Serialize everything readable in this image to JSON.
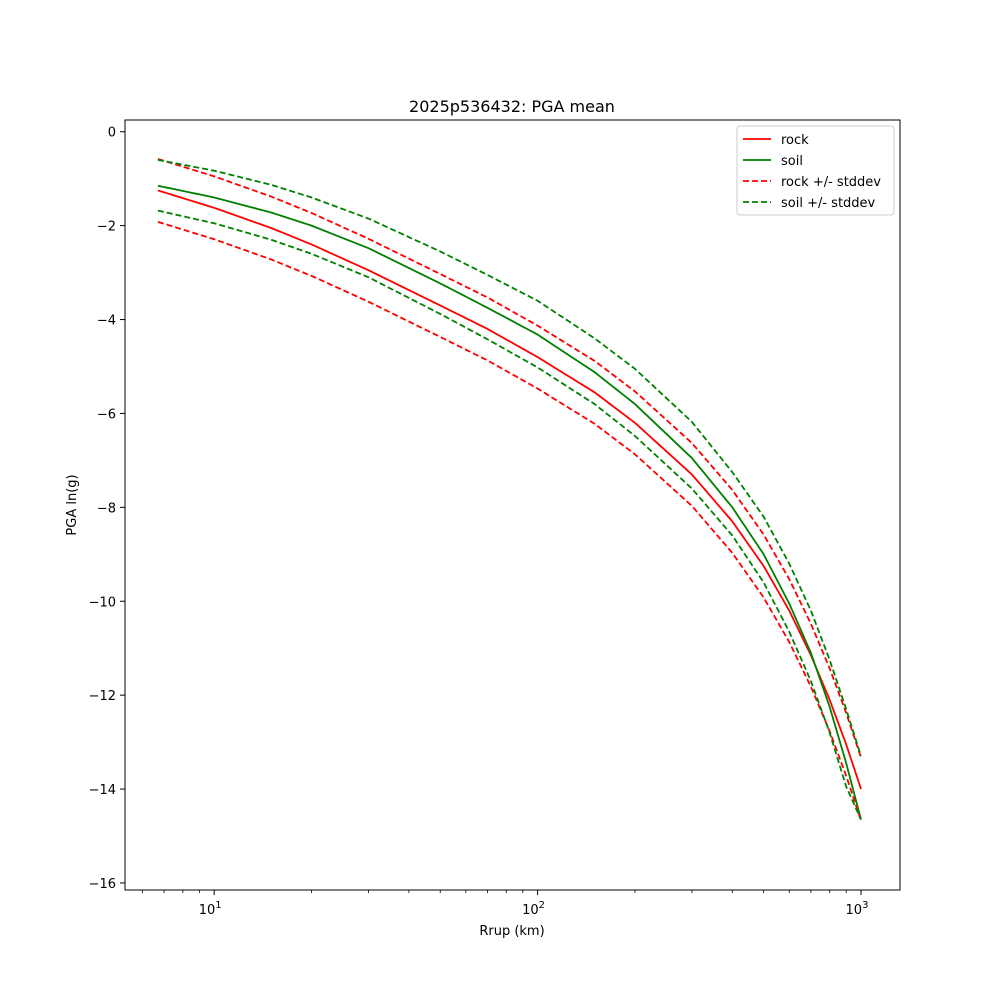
{
  "chart_data": {
    "type": "line",
    "title": "2025p536432: PGA mean",
    "xlabel": "Rrup (km)",
    "ylabel": "PGA ln(g)",
    "xscale": "log",
    "xlim": [
      5.3,
      1320
    ],
    "ylim": [
      -16.15,
      0.25
    ],
    "grid": false,
    "legend_position": "top-right",
    "x_ticks": [
      {
        "value": 10,
        "base": "10",
        "exp": "1"
      },
      {
        "value": 100,
        "base": "10",
        "exp": "2"
      },
      {
        "value": 1000,
        "base": "10",
        "exp": "3"
      }
    ],
    "y_ticks": [
      {
        "value": 0,
        "label": "0"
      },
      {
        "value": -2,
        "label": "−2"
      },
      {
        "value": -4,
        "label": "−4"
      },
      {
        "value": -6,
        "label": "−6"
      },
      {
        "value": -8,
        "label": "−8"
      },
      {
        "value": -10,
        "label": "−10"
      },
      {
        "value": -12,
        "label": "−12"
      },
      {
        "value": -14,
        "label": "−14"
      },
      {
        "value": -16,
        "label": "−16"
      }
    ],
    "x": [
      6.7,
      10,
      15,
      20,
      30,
      50,
      70,
      100,
      150,
      200,
      300,
      400,
      500,
      600,
      700,
      800,
      900,
      1000
    ],
    "series": [
      {
        "name": "rock",
        "color": "#ff0000",
        "dash": "solid",
        "values": [
          -1.25,
          -1.62,
          -2.05,
          -2.4,
          -2.95,
          -3.7,
          -4.2,
          -4.8,
          -5.55,
          -6.2,
          -7.3,
          -8.3,
          -9.25,
          -10.2,
          -11.15,
          -12.1,
          -13.05,
          -14.0
        ]
      },
      {
        "name": "soil",
        "color": "#008000",
        "dash": "solid",
        "values": [
          -1.15,
          -1.4,
          -1.72,
          -2.0,
          -2.48,
          -3.23,
          -3.75,
          -4.32,
          -5.12,
          -5.8,
          -6.95,
          -8.0,
          -9.0,
          -10.05,
          -11.1,
          -12.25,
          -13.45,
          -14.65
        ]
      },
      {
        "name": "rock +/- stddev",
        "color": "#ff0000",
        "dash": "dashed",
        "values": [
          -0.58,
          -0.95,
          -1.38,
          -1.73,
          -2.28,
          -3.03,
          -3.53,
          -4.13,
          -4.88,
          -5.53,
          -6.63,
          -7.63,
          -8.58,
          -9.53,
          -10.48,
          -11.43,
          -12.38,
          -13.33
        ]
      },
      {
        "name": "",
        "color": "#ff0000",
        "dash": "dashed",
        "values": [
          -1.92,
          -2.29,
          -2.72,
          -3.07,
          -3.62,
          -4.37,
          -4.87,
          -5.47,
          -6.22,
          -6.87,
          -7.97,
          -8.97,
          -9.92,
          -10.87,
          -11.82,
          -12.77,
          -13.72,
          -14.67
        ]
      },
      {
        "name": "soil +/- stddev",
        "color": "#008000",
        "dash": "dashed",
        "values": [
          -0.6,
          -0.83,
          -1.13,
          -1.4,
          -1.85,
          -2.55,
          -3.05,
          -3.6,
          -4.4,
          -5.05,
          -6.18,
          -7.25,
          -8.2,
          -9.2,
          -10.2,
          -11.25,
          -12.3,
          -13.3
        ]
      },
      {
        "name": "",
        "color": "#008000",
        "dash": "dashed",
        "values": [
          -1.68,
          -1.95,
          -2.3,
          -2.6,
          -3.1,
          -3.88,
          -4.42,
          -5.02,
          -5.8,
          -6.48,
          -7.6,
          -8.6,
          -9.6,
          -10.65,
          -11.7,
          -12.8,
          -13.95,
          -14.65
        ]
      }
    ]
  }
}
